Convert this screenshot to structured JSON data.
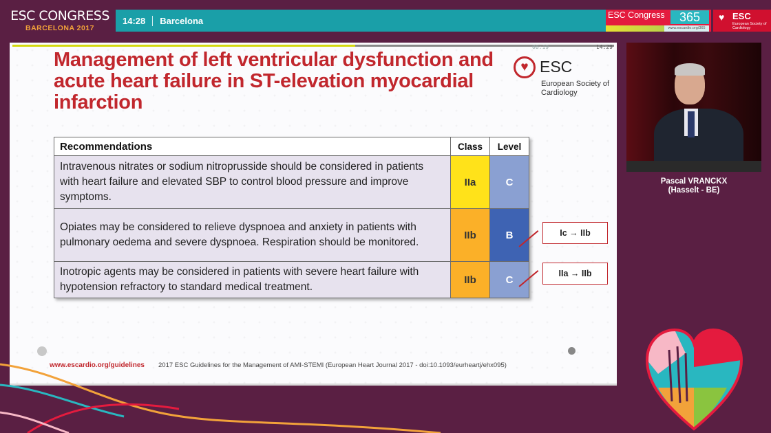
{
  "header": {
    "brand_title": "ESC CONGRESS",
    "brand_subtitle": "BARCELONA 2017",
    "time": "14:28",
    "city": "Barcelona",
    "congress365_label": "ESC Congress",
    "congress365_number": "365",
    "congress365_url": "www.escardio.org/365",
    "esc_logo_name": "ESC",
    "esc_logo_sub": "European Society of Cardiology"
  },
  "player": {
    "elapsed": "08:19",
    "total": "14:29",
    "progress": 0.57
  },
  "slide": {
    "title": "Management of left ventricular dysfunction and acute heart failure in ST-elevation myocardial infarction",
    "logo_name": "ESC",
    "logo_society": "European Society of Cardiology",
    "table": {
      "headers": {
        "recommendations": "Recommendations",
        "class": "Class",
        "level": "Level"
      },
      "rows": [
        {
          "text": "Intravenous nitrates or sodium nitroprusside should be considered in patients with heart failure and elevated SBP to control blood pressure and improve symptoms.",
          "class": "IIa",
          "level": "C"
        },
        {
          "text": "Opiates may be considered to relieve dyspnoea and anxiety in patients with pulmonary oedema and severe dyspnoea. Respiration should be monitored.",
          "class": "IIb",
          "level": "B"
        },
        {
          "text": "Inotropic agents may be considered in patients with severe heart failure with hypotension refractory to standard medical treatment.",
          "class": "IIb",
          "level": "C"
        }
      ]
    },
    "changes": [
      "Ic → IIb",
      "IIa → IIb"
    ],
    "footer_url": "www.escardio.org/guidelines",
    "footer_reference": "2017 ESC Guidelines for the Management of AMI-STEMI (European Heart Journal 2017 - doi:10.1093/eurheartj/ehx095)"
  },
  "speaker": {
    "name": "Pascal VRANCKX",
    "affiliation": "(Hasselt - BE)"
  },
  "colors": {
    "title_red": "#c1272d",
    "class_iia": "#ffe21a",
    "class_iib": "#fbb028",
    "level_c": "#8aa0d2",
    "level_b": "#3e63b3",
    "background": "#5a1f43",
    "info_bar": "#1a9fa8"
  }
}
